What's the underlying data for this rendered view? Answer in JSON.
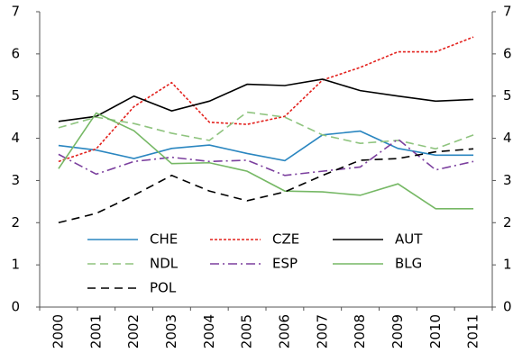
{
  "chart_data": {
    "type": "line",
    "categories": [
      "2000",
      "2001",
      "2002",
      "2003",
      "2004",
      "2005",
      "2006",
      "2007",
      "2008",
      "2009",
      "2010",
      "2011"
    ],
    "series": [
      {
        "name": "CHE",
        "color": "#2a86c0",
        "style": "solid",
        "values": [
          3.83,
          3.72,
          3.52,
          3.76,
          3.84,
          3.64,
          3.47,
          4.08,
          4.17,
          3.76,
          3.6,
          3.6
        ]
      },
      {
        "name": "CZE",
        "color": "#e3201c",
        "style": "dotted",
        "values": [
          3.45,
          3.75,
          4.75,
          5.32,
          4.38,
          4.33,
          4.52,
          5.38,
          5.68,
          6.05,
          6.05,
          6.4
        ]
      },
      {
        "name": "AUT",
        "color": "#000000",
        "style": "solid",
        "values": [
          4.4,
          4.52,
          5.0,
          4.65,
          4.88,
          5.28,
          5.25,
          5.4,
          5.13,
          5.0,
          4.88,
          4.92
        ]
      },
      {
        "name": "NDL",
        "color": "#8fc47f",
        "style": "dashed",
        "values": [
          4.25,
          4.5,
          4.35,
          4.12,
          3.95,
          4.62,
          4.5,
          4.08,
          3.88,
          3.95,
          3.75,
          4.08
        ]
      },
      {
        "name": "ESP",
        "color": "#7b3f9e",
        "style": "dashdot",
        "values": [
          3.62,
          3.15,
          3.45,
          3.55,
          3.45,
          3.48,
          3.12,
          3.22,
          3.32,
          3.98,
          3.25,
          3.45
        ]
      },
      {
        "name": "BLG",
        "color": "#76b865",
        "style": "solid",
        "values": [
          3.28,
          4.6,
          4.18,
          3.4,
          3.42,
          3.22,
          2.75,
          2.73,
          2.65,
          2.92,
          2.33,
          2.33
        ]
      },
      {
        "name": "POL",
        "color": "#000000",
        "style": "longdash",
        "values": [
          2.0,
          2.22,
          2.65,
          3.12,
          2.75,
          2.52,
          2.73,
          3.12,
          3.48,
          3.52,
          3.68,
          3.75
        ]
      }
    ],
    "ylim": [
      0,
      7
    ],
    "yticks": [
      0,
      1,
      2,
      3,
      4,
      5,
      6,
      7
    ],
    "y2lim": [
      0,
      7
    ],
    "y2ticks": [
      0,
      1,
      2,
      3,
      4,
      5,
      6,
      7
    ],
    "grid": false
  }
}
